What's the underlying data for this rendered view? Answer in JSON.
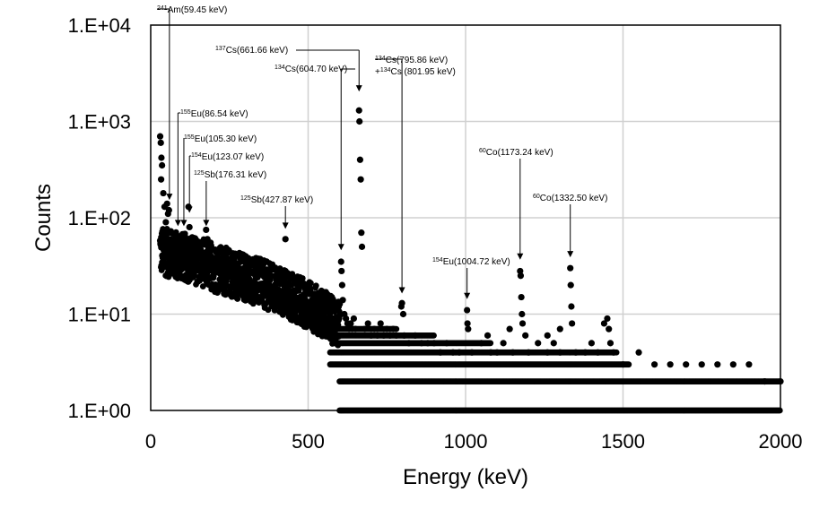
{
  "chart_data": {
    "type": "scatter",
    "xlabel": "Energy (keV)",
    "ylabel": "Counts",
    "xlim": [
      0,
      2000
    ],
    "ylim": [
      1,
      10000
    ],
    "yscale": "log",
    "grid": true,
    "x_ticks": [
      0,
      500,
      1000,
      1500,
      2000
    ],
    "x_tick_labels": [
      "0",
      "500",
      "1000",
      "1500",
      "2000"
    ],
    "y_ticks": [
      1,
      10,
      100,
      1000,
      10000
    ],
    "y_tick_labels": [
      "1.E+00",
      "1.E+01",
      "1.E+02",
      "1.E+03",
      "1.E+04"
    ],
    "marker_color": "#000000",
    "series": [
      {
        "points": [
          [
            30,
            700
          ],
          [
            32,
            600
          ],
          [
            34,
            420
          ],
          [
            36,
            350
          ],
          [
            33,
            250
          ],
          [
            40,
            180
          ],
          [
            44,
            130
          ],
          [
            48,
            90
          ],
          [
            52,
            140
          ],
          [
            55,
            110
          ],
          [
            58,
            120
          ],
          [
            30,
            58
          ],
          [
            35,
            52
          ],
          [
            40,
            48
          ],
          [
            45,
            60
          ],
          [
            50,
            45
          ],
          [
            55,
            42
          ],
          [
            60,
            70
          ],
          [
            65,
            38
          ],
          [
            70,
            40
          ],
          [
            75,
            55
          ],
          [
            80,
            33
          ],
          [
            85,
            44
          ],
          [
            90,
            50
          ],
          [
            95,
            36
          ],
          [
            100,
            62
          ],
          [
            105,
            48
          ],
          [
            110,
            40
          ],
          [
            115,
            45
          ],
          [
            120,
            130
          ],
          [
            123,
            80
          ],
          [
            125,
            52
          ],
          [
            130,
            45
          ],
          [
            135,
            38
          ],
          [
            140,
            48
          ],
          [
            145,
            35
          ],
          [
            150,
            42
          ],
          [
            155,
            30
          ],
          [
            160,
            45
          ],
          [
            165,
            55
          ],
          [
            170,
            40
          ],
          [
            176,
            75
          ],
          [
            180,
            60
          ],
          [
            185,
            45
          ],
          [
            190,
            35
          ],
          [
            195,
            30
          ],
          [
            200,
            38
          ],
          [
            205,
            30
          ],
          [
            210,
            32
          ],
          [
            215,
            28
          ],
          [
            220,
            34
          ],
          [
            225,
            25
          ],
          [
            230,
            30
          ],
          [
            235,
            27
          ],
          [
            240,
            22
          ],
          [
            245,
            28
          ],
          [
            250,
            25
          ],
          [
            255,
            30
          ],
          [
            260,
            24
          ],
          [
            265,
            20
          ],
          [
            270,
            26
          ],
          [
            275,
            22
          ],
          [
            280,
            24
          ],
          [
            285,
            19
          ],
          [
            290,
            23
          ],
          [
            295,
            21
          ],
          [
            300,
            18
          ],
          [
            305,
            22
          ],
          [
            310,
            20
          ],
          [
            315,
            17
          ],
          [
            320,
            21
          ],
          [
            325,
            19
          ],
          [
            330,
            16
          ],
          [
            335,
            20
          ],
          [
            340,
            18
          ],
          [
            345,
            15
          ],
          [
            350,
            19
          ],
          [
            355,
            17
          ],
          [
            360,
            20
          ],
          [
            365,
            16
          ],
          [
            370,
            18
          ],
          [
            375,
            14
          ],
          [
            380,
            17
          ],
          [
            385,
            15
          ],
          [
            390,
            19
          ],
          [
            395,
            16
          ],
          [
            400,
            14
          ],
          [
            405,
            18
          ],
          [
            410,
            15
          ],
          [
            415,
            17
          ],
          [
            420,
            14
          ],
          [
            427.87,
            60
          ],
          [
            430,
            25
          ],
          [
            435,
            16
          ],
          [
            440,
            14
          ],
          [
            445,
            17
          ],
          [
            450,
            13
          ],
          [
            455,
            15
          ],
          [
            460,
            12
          ],
          [
            465,
            14
          ],
          [
            470,
            11
          ],
          [
            475,
            13
          ],
          [
            480,
            12
          ],
          [
            485,
            10
          ],
          [
            490,
            13
          ],
          [
            495,
            11
          ],
          [
            500,
            12
          ],
          [
            505,
            10
          ],
          [
            510,
            11
          ],
          [
            515,
            9
          ],
          [
            520,
            11
          ],
          [
            525,
            10
          ],
          [
            530,
            9
          ],
          [
            535,
            8
          ],
          [
            540,
            10
          ],
          [
            545,
            9
          ],
          [
            550,
            8
          ],
          [
            555,
            9
          ],
          [
            560,
            8
          ],
          [
            565,
            7
          ],
          [
            570,
            8
          ],
          [
            575,
            9
          ],
          [
            580,
            7
          ],
          [
            585,
            8
          ],
          [
            590,
            7
          ],
          [
            595,
            9
          ],
          [
            604.7,
            35
          ],
          [
            606,
            28
          ],
          [
            608,
            20
          ],
          [
            610,
            14
          ],
          [
            615,
            10
          ],
          [
            620,
            9
          ],
          [
            625,
            8
          ],
          [
            630,
            7
          ],
          [
            635,
            8
          ],
          [
            640,
            7
          ],
          [
            645,
            9
          ],
          [
            650,
            7
          ],
          [
            661.66,
            1300
          ],
          [
            663,
            1000
          ],
          [
            665,
            400
          ],
          [
            667,
            250
          ],
          [
            669,
            70
          ],
          [
            671,
            50
          ],
          [
            680,
            7
          ],
          [
            690,
            8
          ],
          [
            700,
            6
          ],
          [
            710,
            7
          ],
          [
            720,
            6
          ],
          [
            730,
            8
          ],
          [
            740,
            6
          ],
          [
            750,
            7
          ],
          [
            760,
            6
          ],
          [
            770,
            7
          ],
          [
            780,
            6
          ],
          [
            795.86,
            12
          ],
          [
            798,
            13
          ],
          [
            801.95,
            10
          ],
          [
            805,
            6
          ],
          [
            820,
            5
          ],
          [
            840,
            6
          ],
          [
            860,
            5
          ],
          [
            880,
            5
          ],
          [
            900,
            5
          ],
          [
            920,
            4
          ],
          [
            940,
            5
          ],
          [
            960,
            4
          ],
          [
            980,
            4
          ],
          [
            1004.72,
            11
          ],
          [
            1006,
            8
          ],
          [
            1008,
            7
          ],
          [
            1020,
            4
          ],
          [
            1050,
            5
          ],
          [
            1080,
            4
          ],
          [
            1100,
            4
          ],
          [
            1120,
            5
          ],
          [
            1150,
            4
          ],
          [
            1173.24,
            28
          ],
          [
            1175,
            25
          ],
          [
            1177,
            15
          ],
          [
            1179,
            10
          ],
          [
            1181,
            8
          ],
          [
            1200,
            4
          ],
          [
            1230,
            5
          ],
          [
            1260,
            4
          ],
          [
            1280,
            5
          ],
          [
            1300,
            4
          ],
          [
            1332.5,
            30
          ],
          [
            1334,
            20
          ],
          [
            1336,
            12
          ],
          [
            1338,
            8
          ],
          [
            1350,
            4
          ],
          [
            1380,
            4
          ],
          [
            1400,
            5
          ],
          [
            1420,
            4
          ],
          [
            1440,
            8
          ],
          [
            1450,
            9
          ],
          [
            1455,
            7
          ],
          [
            1460,
            5
          ],
          [
            1470,
            4
          ],
          [
            1500,
            3
          ],
          [
            1550,
            4
          ],
          [
            1600,
            3
          ],
          [
            1650,
            3
          ],
          [
            1700,
            3
          ],
          [
            1750,
            3
          ],
          [
            1800,
            3
          ],
          [
            1850,
            3
          ],
          [
            1900,
            3
          ],
          [
            1950,
            2
          ],
          [
            2000,
            2
          ],
          [
            1070,
            6
          ],
          [
            1140,
            7
          ],
          [
            1190,
            6
          ],
          [
            1260,
            6
          ],
          [
            1300,
            7
          ]
        ]
      }
    ],
    "bands": [
      {
        "y": 1,
        "x_start": 600,
        "x_end": 2000
      },
      {
        "y": 2,
        "x_start": 600,
        "x_end": 2000
      },
      {
        "y": 3,
        "x_start": 570,
        "x_end": 1520
      },
      {
        "y": 4,
        "x_start": 570,
        "x_end": 1480
      },
      {
        "y": 5,
        "x_start": 590,
        "x_end": 1080
      },
      {
        "y": 6,
        "x_start": 560,
        "x_end": 900
      },
      {
        "y": 7,
        "x_start": 540,
        "x_end": 780
      }
    ],
    "annotations": [
      {
        "sup": "241",
        "text": "Am(59.45 keV)",
        "x": 59.45,
        "y_arrow": 150
      },
      {
        "sup": "155",
        "text": "Eu(86.54 keV)",
        "x": 86.54,
        "y_arrow": 80
      },
      {
        "sup": "155",
        "text": "Eu(105.30 keV)",
        "x": 105.3,
        "y_arrow": 80
      },
      {
        "sup": "154",
        "text": "Eu(123.07 keV)",
        "x": 123.07,
        "y_arrow": 110
      },
      {
        "sup": "125",
        "text": "Sb(176.31 keV)",
        "x": 176.31,
        "y_arrow": 80
      },
      {
        "sup": "125",
        "text": "Sb(427.87 keV)",
        "x": 427.87,
        "y_arrow": 75
      },
      {
        "sup": "134",
        "text": "Cs(604.70 keV)",
        "x": 604.7,
        "y_arrow": 45
      },
      {
        "sup": "137",
        "text": "Cs(661.66 keV)",
        "x": 661.66,
        "y_arrow": 2000
      },
      {
        "sup": "134",
        "text": "Cs(795.86 keV)",
        "text2_sup": "134",
        "text2": "Cs (801.95 keV)",
        "x": 798,
        "y_arrow": 16
      },
      {
        "sup": "154",
        "text": "Eu(1004.72 keV)",
        "x": 1004.72,
        "y_arrow": 14
      },
      {
        "sup": "60",
        "text": "Co(1173.24 keV)",
        "x": 1173.24,
        "y_arrow": 36
      },
      {
        "sup": "60",
        "text": "Co(1332.50 keV)",
        "x": 1332.5,
        "y_arrow": 38
      }
    ]
  }
}
